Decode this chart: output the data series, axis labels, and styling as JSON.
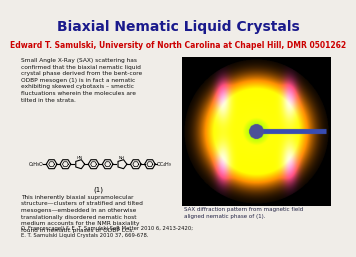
{
  "title": "Biaxial Nematic Liquid Crystals",
  "title_color": "#1a1a8c",
  "subtitle": "Edward T. Samulski, University of North Carolina at Chapel Hill, DMR 0501262",
  "subtitle_color": "#cc0000",
  "bg_color": "#f0ede8",
  "left_text": "Small Angle X-Ray (SAX) scattering has\nconfirmed that the biaxial nematic liquid\ncrystal phase derived from the bent-core\nODBP mesogen (1) is in fact a nematic\nexhibiting skewed cybotaxis – smectic\nfluctuations wherein the molecules are\ntilted in the strata.",
  "bottom_left_text": "This inherently biaxial supramolecular\nstructure—clusters of stratified and tilted\nmesogens—embedded in an otherwise\ntranslationally disordered nematic host\nmedium accounts for the NMR biaxiality\nfound in nematic phases of ODBP LCs.",
  "caption": "SAX diffraction pattern from magnetic field\naligned nematic phase of (1).",
  "refs": "O. Francescageli & E. T. Samulski Soft Matter 2010 6, 2413-2420;\nE. T. Samulski Liquid Crystals 2010 37, 669-678.",
  "molecule_label": "(1)"
}
